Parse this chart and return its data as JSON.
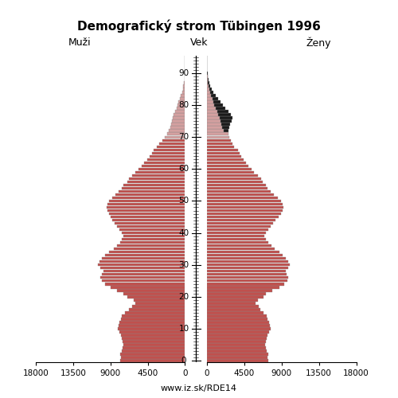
{
  "title": "Demografický strom Tübingen 1996",
  "subtitle": "www.iz.sk/RDE14",
  "label_males": "Muži",
  "label_females": "Ženy",
  "label_age": "Vek",
  "xlim": 18000,
  "bar_color_male_red": "#c0504d",
  "bar_color_male_pink": "#d4a0a0",
  "bar_color_female_red": "#c0504d",
  "bar_color_female_pink": "#d4a0a0",
  "bar_color_black": "#1a1a1a",
  "ages": [
    0,
    1,
    2,
    3,
    4,
    5,
    6,
    7,
    8,
    9,
    10,
    11,
    12,
    13,
    14,
    15,
    16,
    17,
    18,
    19,
    20,
    21,
    22,
    23,
    24,
    25,
    26,
    27,
    28,
    29,
    30,
    31,
    32,
    33,
    34,
    35,
    36,
    37,
    38,
    39,
    40,
    41,
    42,
    43,
    44,
    45,
    46,
    47,
    48,
    49,
    50,
    51,
    52,
    53,
    54,
    55,
    56,
    57,
    58,
    59,
    60,
    61,
    62,
    63,
    64,
    65,
    66,
    67,
    68,
    69,
    70,
    71,
    72,
    73,
    74,
    75,
    76,
    77,
    78,
    79,
    80,
    81,
    82,
    83,
    84,
    85,
    86,
    87,
    88,
    89,
    90,
    91,
    92,
    93,
    94,
    95
  ],
  "males": [
    7800,
    7700,
    7800,
    7600,
    7500,
    7400,
    7500,
    7600,
    7700,
    7900,
    8100,
    8000,
    7900,
    7700,
    7600,
    7200,
    6800,
    6400,
    6000,
    6200,
    7000,
    7400,
    8200,
    9000,
    9600,
    10000,
    10200,
    10000,
    9800,
    10200,
    10500,
    10300,
    10000,
    9600,
    9200,
    8600,
    8200,
    7800,
    7600,
    7400,
    7600,
    7900,
    8200,
    8500,
    8800,
    9000,
    9200,
    9400,
    9500,
    9400,
    9200,
    8800,
    8400,
    8000,
    7600,
    7400,
    7000,
    6800,
    6400,
    6000,
    5600,
    5200,
    4900,
    4600,
    4300,
    4000,
    3800,
    3400,
    3100,
    2700,
    2400,
    2200,
    2000,
    1800,
    1700,
    1600,
    1500,
    1350,
    1200,
    1050,
    900,
    800,
    650,
    500,
    380,
    280,
    200,
    140,
    90,
    60,
    35,
    20,
    12,
    6,
    3,
    1
  ],
  "females": [
    7400,
    7300,
    7400,
    7200,
    7100,
    7000,
    7100,
    7200,
    7300,
    7500,
    7700,
    7600,
    7500,
    7300,
    7200,
    6800,
    6400,
    6200,
    5900,
    6100,
    6800,
    7100,
    7900,
    8700,
    9300,
    9700,
    9800,
    9600,
    9500,
    9800,
    10000,
    9800,
    9500,
    9100,
    8700,
    8200,
    7800,
    7400,
    7100,
    6900,
    7100,
    7400,
    7700,
    8000,
    8300,
    8600,
    8900,
    9100,
    9200,
    9100,
    8900,
    8500,
    8100,
    7700,
    7300,
    7100,
    6700,
    6500,
    6100,
    5700,
    5400,
    5000,
    4700,
    4400,
    4100,
    3900,
    3700,
    3300,
    3100,
    2900,
    2700,
    2600,
    2600,
    2700,
    2800,
    3000,
    3100,
    2900,
    2600,
    2200,
    1900,
    1600,
    1300,
    1050,
    800,
    600,
    430,
    300,
    200,
    130,
    75,
    42,
    22,
    11,
    5,
    2
  ]
}
